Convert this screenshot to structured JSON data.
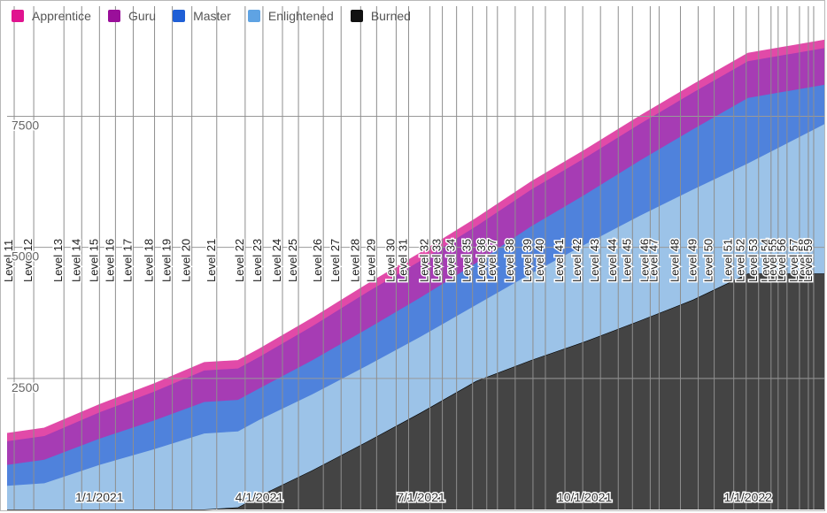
{
  "chart_data": {
    "type": "area",
    "stacked": true,
    "title": "",
    "xlabel": "",
    "ylabel": "",
    "x_range": [
      "2020-11-10",
      "2022-02-13"
    ],
    "ylim": [
      0,
      9600
    ],
    "y_ticks": [
      "2500",
      "5000",
      "7500"
    ],
    "y_tick_values": [
      2500,
      5000,
      7500
    ],
    "x_ticks": [
      {
        "label": "1/1/2021",
        "date": "2021-01-01"
      },
      {
        "label": "4/1/2021",
        "date": "2021-04-01"
      },
      {
        "label": "7/1/2021",
        "date": "2021-07-01"
      },
      {
        "label": "10/1/2021",
        "date": "2021-10-01"
      },
      {
        "label": "1/1/2022",
        "date": "2022-01-01"
      }
    ],
    "legend": [
      {
        "name": "Apprentice",
        "color": "#e0138f"
      },
      {
        "name": "Guru",
        "color": "#9a0f9a"
      },
      {
        "name": "Master",
        "color": "#1f5fd6"
      },
      {
        "name": "Enlightened",
        "color": "#5fa3e3"
      },
      {
        "name": "Burned",
        "color": "#111111"
      }
    ],
    "dates": [
      "2020-11-10",
      "2020-12-01",
      "2021-01-01",
      "2021-02-01",
      "2021-03-01",
      "2021-03-20",
      "2021-04-01",
      "2021-05-01",
      "2021-06-01",
      "2021-07-01",
      "2021-08-01",
      "2021-09-01",
      "2021-10-01",
      "2021-11-01",
      "2021-12-01",
      "2022-01-01",
      "2022-02-13"
    ],
    "series": [
      {
        "name": "Burned",
        "color": "#444444",
        "values": [
          0,
          0,
          0,
          0,
          0,
          40,
          260,
          750,
          1300,
          1850,
          2450,
          2850,
          3200,
          3600,
          4000,
          4500,
          4500
        ]
      },
      {
        "name": "Enlightened",
        "color": "#9cc3e8",
        "values": [
          450,
          500,
          850,
          1150,
          1450,
          1450,
          1450,
          1450,
          1450,
          1450,
          1450,
          1650,
          1850,
          2000,
          2100,
          2100,
          2850
        ]
      },
      {
        "name": "Master",
        "color": "#4f82dc",
        "values": [
          400,
          450,
          500,
          550,
          600,
          600,
          600,
          650,
          700,
          750,
          800,
          900,
          950,
          1050,
          1150,
          1250,
          750
        ]
      },
      {
        "name": "Guru",
        "color": "#a63cb4",
        "values": [
          450,
          450,
          500,
          550,
          600,
          600,
          600,
          650,
          700,
          700,
          700,
          700,
          700,
          700,
          700,
          700,
          700
        ]
      },
      {
        "name": "Apprentice",
        "color": "#e14aa8",
        "values": [
          150,
          150,
          150,
          150,
          150,
          150,
          150,
          150,
          150,
          150,
          150,
          150,
          150,
          150,
          150,
          150,
          150
        ]
      }
    ],
    "level_markers": [
      {
        "label": "Level 11",
        "date": "2020-11-14"
      },
      {
        "label": "Level 12",
        "date": "2020-11-25"
      },
      {
        "label": "Level 13",
        "date": "2020-12-12"
      },
      {
        "label": "Level 14",
        "date": "2020-12-22"
      },
      {
        "label": "Level 15",
        "date": "2021-01-01"
      },
      {
        "label": "Level 16",
        "date": "2021-01-10"
      },
      {
        "label": "Level 17",
        "date": "2021-01-20"
      },
      {
        "label": "Level 18",
        "date": "2021-02-01"
      },
      {
        "label": "Level 19",
        "date": "2021-02-11"
      },
      {
        "label": "Level 20",
        "date": "2021-02-22"
      },
      {
        "label": "Level 21",
        "date": "2021-03-08"
      },
      {
        "label": "Level 22",
        "date": "2021-03-24"
      },
      {
        "label": "Level 23",
        "date": "2021-04-03"
      },
      {
        "label": "Level 24",
        "date": "2021-04-14"
      },
      {
        "label": "Level 25",
        "date": "2021-04-23"
      },
      {
        "label": "Level 26",
        "date": "2021-05-07"
      },
      {
        "label": "Level 27",
        "date": "2021-05-17"
      },
      {
        "label": "Level 28",
        "date": "2021-05-28"
      },
      {
        "label": "Level 29",
        "date": "2021-06-06"
      },
      {
        "label": "Level 30",
        "date": "2021-06-17"
      },
      {
        "label": "Level 31",
        "date": "2021-06-24"
      },
      {
        "label": "Level 32",
        "date": "2021-07-06"
      },
      {
        "label": "Level 33",
        "date": "2021-07-13"
      },
      {
        "label": "Level 34",
        "date": "2021-07-21"
      },
      {
        "label": "Level 35",
        "date": "2021-07-30"
      },
      {
        "label": "Level 36",
        "date": "2021-08-07"
      },
      {
        "label": "Level 37",
        "date": "2021-08-13"
      },
      {
        "label": "Level 38",
        "date": "2021-08-23"
      },
      {
        "label": "Level 39",
        "date": "2021-09-02"
      },
      {
        "label": "Level 40",
        "date": "2021-09-09"
      },
      {
        "label": "Level 41",
        "date": "2021-09-20"
      },
      {
        "label": "Level 42",
        "date": "2021-09-30"
      },
      {
        "label": "Level 43",
        "date": "2021-10-10"
      },
      {
        "label": "Level 44",
        "date": "2021-10-20"
      },
      {
        "label": "Level 45",
        "date": "2021-10-28"
      },
      {
        "label": "Level 46",
        "date": "2021-11-07"
      },
      {
        "label": "Level 47",
        "date": "2021-11-12"
      },
      {
        "label": "Level 48",
        "date": "2021-11-24"
      },
      {
        "label": "Level 49",
        "date": "2021-12-04"
      },
      {
        "label": "Level 50",
        "date": "2021-12-13"
      },
      {
        "label": "Level 51",
        "date": "2021-12-24"
      },
      {
        "label": "Level 52",
        "date": "2021-12-31"
      },
      {
        "label": "Level 53",
        "date": "2022-01-07"
      },
      {
        "label": "Level 54",
        "date": "2022-01-14"
      },
      {
        "label": "Level 55",
        "date": "2022-01-18"
      },
      {
        "label": "Level 56",
        "date": "2022-01-23"
      },
      {
        "label": "Level 57",
        "date": "2022-01-30"
      },
      {
        "label": "Level 58",
        "date": "2022-02-04"
      },
      {
        "label": "Level 59",
        "date": "2022-02-07"
      }
    ]
  }
}
